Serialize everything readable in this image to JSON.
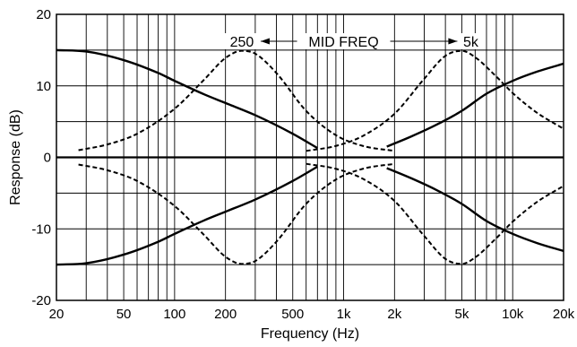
{
  "chart_data": {
    "type": "line",
    "title": "",
    "xlabel": "Frequency (Hz)",
    "ylabel": "Response (dB)",
    "x_scale": "log",
    "xlim": [
      20,
      20000
    ],
    "ylim": [
      -20,
      20
    ],
    "grid": true,
    "legend": "none",
    "x_ticks": [
      20,
      50,
      100,
      200,
      500,
      1000,
      2000,
      5000,
      10000,
      20000
    ],
    "x_tick_labels": [
      "20",
      "50",
      "100",
      "200",
      "500",
      "1k",
      "2k",
      "5k",
      "10k",
      "20k"
    ],
    "y_ticks": [
      20,
      10,
      0,
      -10,
      -20
    ],
    "y_tick_labels": [
      "20",
      "10",
      "0",
      "-10",
      "-20"
    ],
    "annotation": {
      "left_label": "250",
      "center_label": "MID FREQ",
      "right_label": "5k"
    },
    "series": [
      {
        "style": "solid",
        "x": [
          20,
          30,
          50,
          80,
          100,
          150,
          200,
          300,
          500,
          700
        ],
        "y": [
          15,
          14.8,
          13.6,
          11.8,
          10.7,
          8.8,
          7.6,
          5.9,
          3.3,
          1.3
        ]
      },
      {
        "style": "solid",
        "x": [
          20,
          30,
          50,
          80,
          100,
          150,
          200,
          300,
          500,
          700
        ],
        "y": [
          -15,
          -14.8,
          -13.6,
          -11.8,
          -10.7,
          -8.8,
          -7.6,
          -5.9,
          -3.3,
          -1.3
        ]
      },
      {
        "style": "solid",
        "x": [
          1800,
          2500,
          3500,
          5000,
          7000,
          10000,
          14000,
          20000
        ],
        "y": [
          1.5,
          2.9,
          4.5,
          6.5,
          8.9,
          10.7,
          12.0,
          13.1
        ]
      },
      {
        "style": "solid",
        "x": [
          1800,
          2500,
          3500,
          5000,
          7000,
          10000,
          14000,
          20000
        ],
        "y": [
          -1.5,
          -2.9,
          -4.5,
          -6.5,
          -8.9,
          -10.7,
          -12.0,
          -13.1
        ]
      },
      {
        "style": "dashed",
        "x": [
          27,
          40,
          60,
          100,
          150,
          200,
          250,
          300,
          400,
          600,
          900,
          1300,
          2000
        ],
        "y": [
          1,
          1.8,
          3.3,
          6.8,
          10.9,
          13.9,
          14.9,
          14.5,
          11.8,
          6.5,
          3.1,
          1.6,
          0.9
        ]
      },
      {
        "style": "dashed",
        "x": [
          27,
          40,
          60,
          100,
          150,
          200,
          250,
          300,
          400,
          600,
          900,
          1300,
          2000
        ],
        "y": [
          -1,
          -1.8,
          -3.3,
          -6.8,
          -10.9,
          -13.9,
          -14.9,
          -14.5,
          -11.8,
          -6.5,
          -3.1,
          -1.6,
          -0.9
        ]
      },
      {
        "style": "dashed",
        "x": [
          600,
          900,
          1300,
          2000,
          3000,
          4000,
          5000,
          6000,
          8000,
          10000,
          14000,
          20000
        ],
        "y": [
          0.9,
          1.6,
          3.0,
          6.1,
          11.0,
          14.2,
          14.9,
          14.0,
          11.3,
          9.0,
          6.2,
          4.0
        ]
      },
      {
        "style": "dashed",
        "x": [
          600,
          900,
          1300,
          2000,
          3000,
          4000,
          5000,
          6000,
          8000,
          10000,
          14000,
          20000
        ],
        "y": [
          -0.9,
          -1.6,
          -3.0,
          -6.1,
          -11.0,
          -14.2,
          -14.9,
          -14.0,
          -11.3,
          -9.0,
          -6.2,
          -4.0
        ]
      }
    ]
  }
}
